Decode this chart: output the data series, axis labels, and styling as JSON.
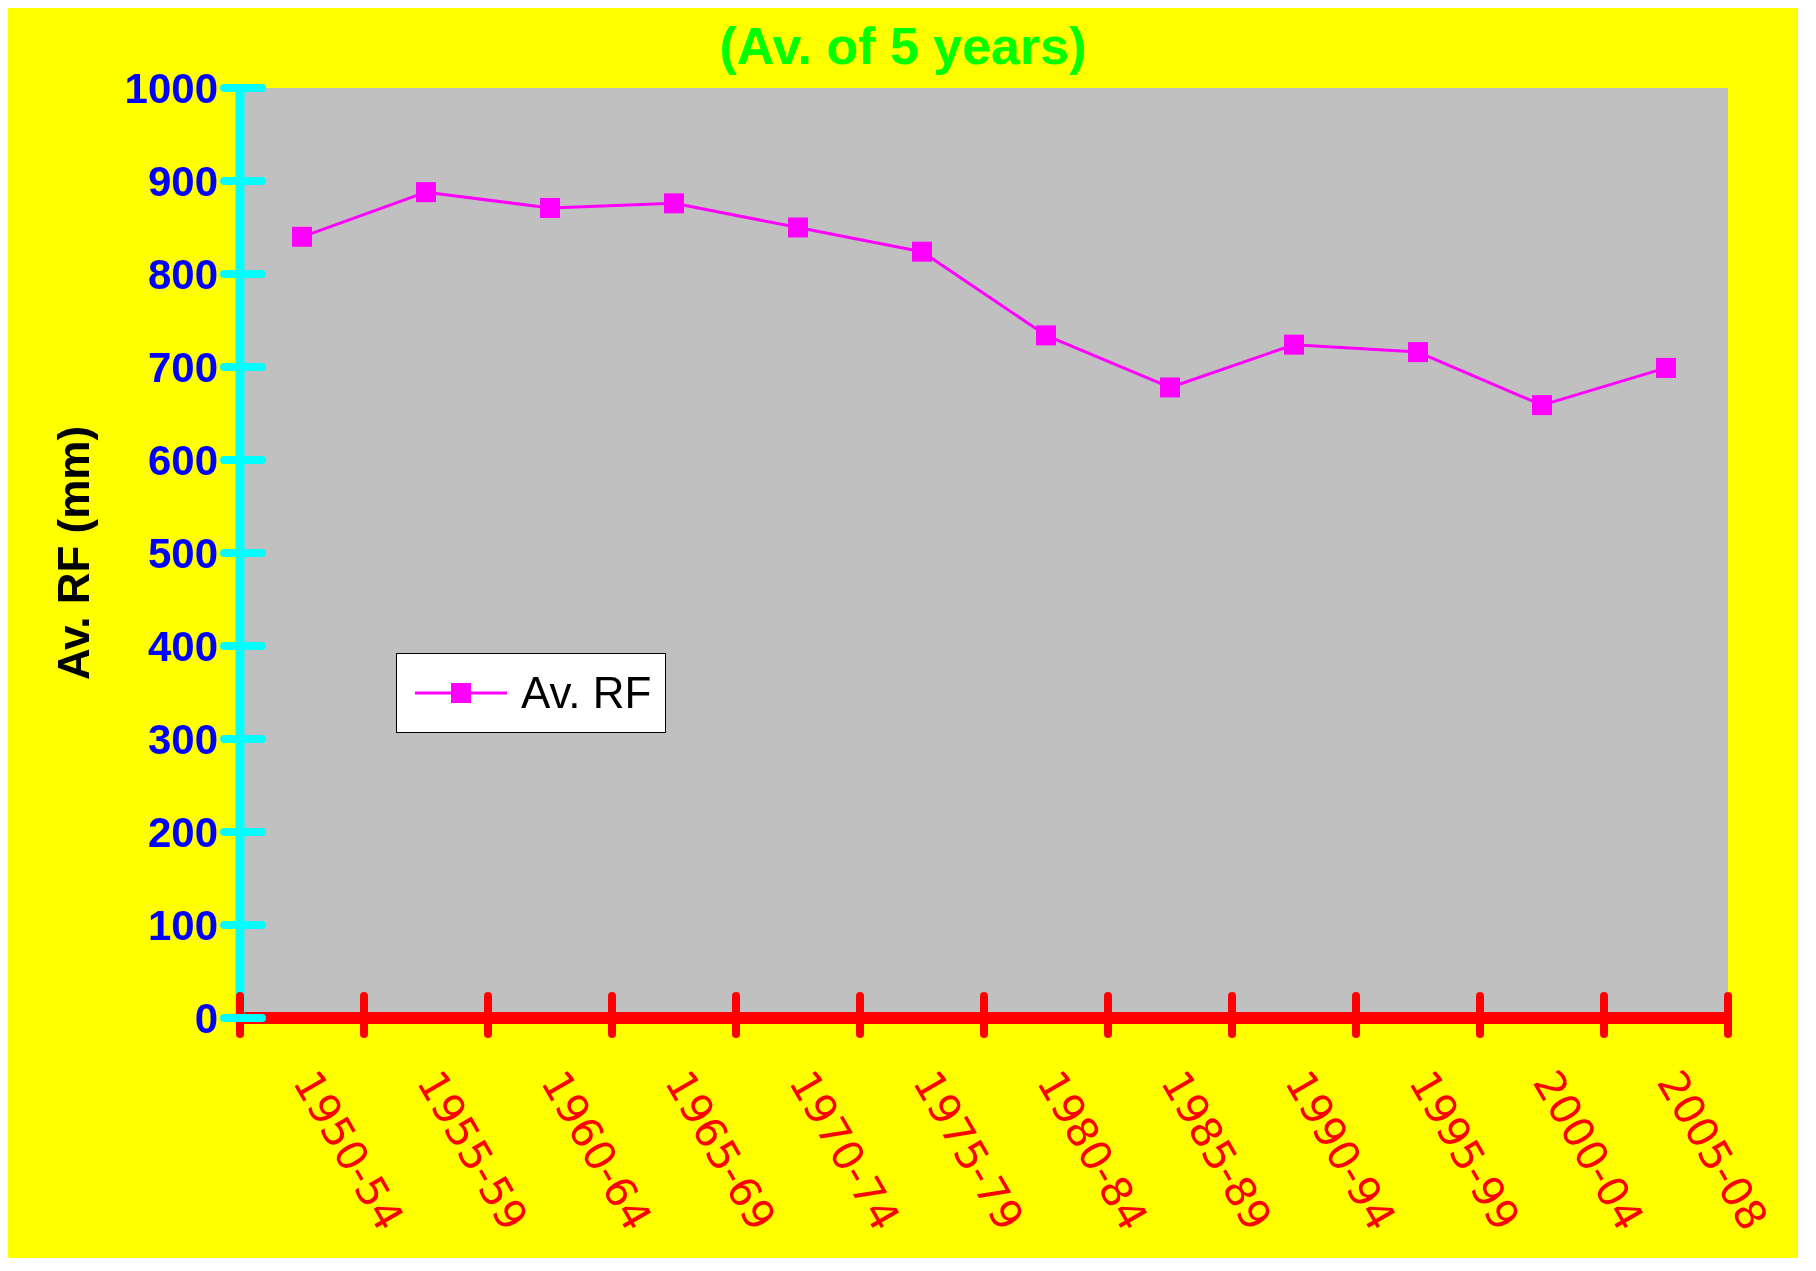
{
  "chart_data": {
    "type": "line",
    "title": "(Av. of 5 years)",
    "ylabel": "Av. RF (mm)",
    "categories": [
      "1950-54",
      "1955-59",
      "1960-64",
      "1965-69",
      "1970-74",
      "1975-79",
      "1980-84",
      "1985-89",
      "1990-94",
      "1995-99",
      "2000-04",
      "2005-08"
    ],
    "series": [
      {
        "name": "Av. RF",
        "color": "#ff00ff",
        "values": [
          840,
          888,
          871,
          876,
          850,
          824,
          734,
          678,
          724,
          716,
          659,
          699
        ]
      }
    ],
    "ylim": [
      0,
      1000
    ],
    "yticks": [
      0,
      100,
      200,
      300,
      400,
      500,
      600,
      700,
      800,
      900,
      1000
    ],
    "marker": "square",
    "line_style": "solid",
    "legend": "left",
    "grid": false
  }
}
